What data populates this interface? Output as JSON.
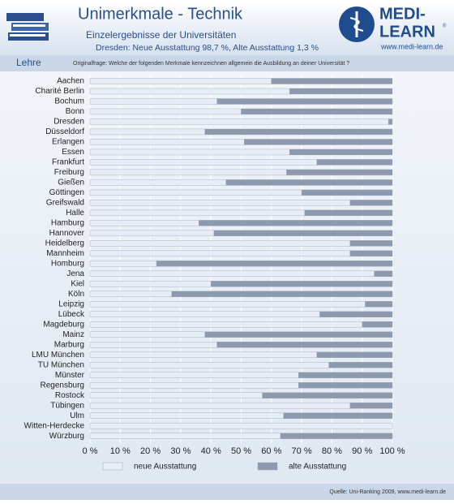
{
  "chart_data": {
    "type": "stacked-barh",
    "title": "Unimerkmale - Technik",
    "subtitle": "Einzelergebnisse der Universitäten",
    "highlight_text": "Dresden: Neue Ausstattung 98,7 %, Alte Ausstattung 1,3 %",
    "section": "Lehre",
    "question": "Originalfrage: Welche der folgenden Merkmale kennzeichnen allgemein die Ausbildung an deiner Universität ?",
    "source": "Quelle: Uni-Ranking 2009, www.medi-learn.de",
    "categories": [
      "Aachen",
      "Charité Berlin",
      "Bochum",
      "Bonn",
      "Dresden",
      "Düsseldorf",
      "Erlangen",
      "Essen",
      "Frankfurt",
      "Freiburg",
      "Gießen",
      "Göttingen",
      "Greifswald",
      "Halle",
      "Hamburg",
      "Hannover",
      "Heidelberg",
      "Mannheim",
      "Homburg",
      "Jena",
      "Kiel",
      "Köln",
      "Leipzig",
      "Lübeck",
      "Magdeburg",
      "Mainz",
      "Marburg",
      "LMU München",
      "TU München",
      "Münster",
      "Regensburg",
      "Rostock",
      "Tübingen",
      "Ulm",
      "Witten-Herdecke",
      "Würzburg"
    ],
    "series": [
      {
        "name": "neue Ausstattung",
        "color": "#e6edf6",
        "values": [
          60,
          66,
          42,
          50,
          98.7,
          38,
          51,
          66,
          75,
          65,
          45,
          70,
          86,
          71,
          36,
          41,
          86,
          86,
          22,
          94,
          40,
          27,
          91,
          76,
          90,
          38,
          42,
          75,
          79,
          69,
          69,
          57,
          86,
          64,
          100,
          63
        ]
      },
      {
        "name": "alte Ausstattung",
        "color": "#8d99ad",
        "values": [
          40,
          34,
          58,
          50,
          1.3,
          62,
          49,
          34,
          25,
          35,
          55,
          30,
          14,
          29,
          64,
          59,
          14,
          14,
          78,
          6,
          60,
          73,
          9,
          24,
          10,
          62,
          58,
          25,
          21,
          31,
          31,
          43,
          14,
          36,
          0,
          37
        ]
      }
    ],
    "xlim": [
      0,
      100
    ],
    "xticks": [
      {
        "value": 0,
        "label": "0 %"
      },
      {
        "value": 10,
        "label": "10 %"
      },
      {
        "value": 20,
        "label": "20 %"
      },
      {
        "value": 30,
        "label": "30 %"
      },
      {
        "value": 40,
        "label": "40 %"
      },
      {
        "value": 50,
        "label": "50 %"
      },
      {
        "value": 60,
        "label": "60 %"
      },
      {
        "value": 70,
        "label": "70 %"
      },
      {
        "value": 80,
        "label": "80 %"
      },
      {
        "value": 90,
        "label": "90 %"
      },
      {
        "value": 100,
        "label": "100 %"
      }
    ],
    "grid": true
  },
  "logo": {
    "line1": "MEDI-",
    "line2": "LEARN",
    "mark": "®",
    "url": "www.medi-learn.de"
  }
}
